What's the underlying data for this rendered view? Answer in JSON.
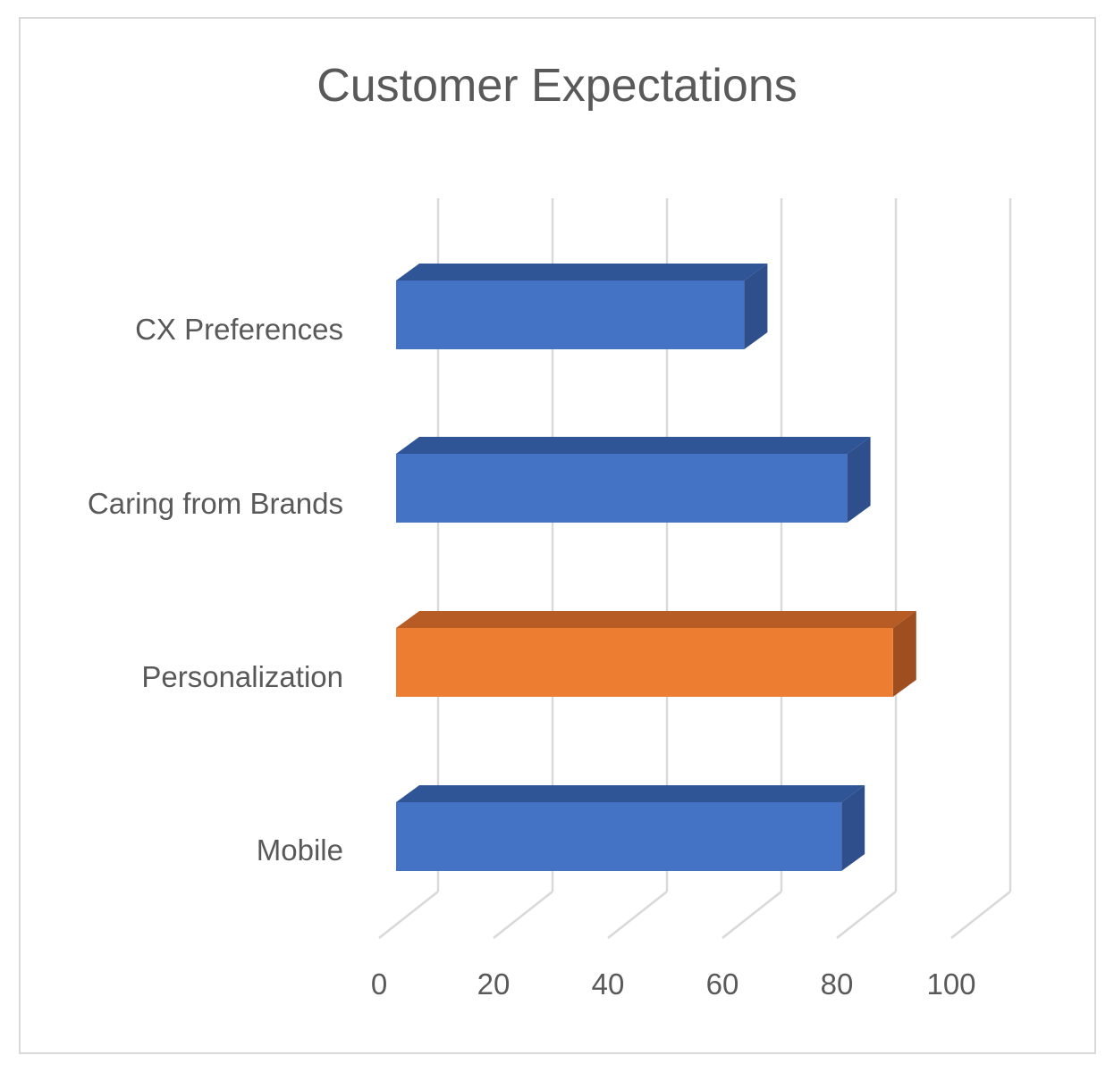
{
  "chart_data": {
    "type": "bar",
    "orientation": "horizontal",
    "style": "3d",
    "title": "Customer Expectations",
    "categories": [
      "Mobile",
      "Personalization",
      "Caring from Brands",
      "CX Preferences"
    ],
    "values": [
      78,
      87,
      79,
      61
    ],
    "bar_colors": [
      "#4472C4",
      "#ED7D31",
      "#4472C4",
      "#4472C4"
    ],
    "highlight": "Personalization",
    "xlabel": "",
    "ylabel": "",
    "xlim": [
      0,
      100
    ],
    "x_ticks": [
      "0",
      "20",
      "40",
      "60",
      "80",
      "100"
    ],
    "grid": true,
    "legend": null
  },
  "colors": {
    "primary": "#4472C4",
    "accent": "#ED7D31",
    "text": "#595959",
    "grid": "#d9d9d9"
  }
}
